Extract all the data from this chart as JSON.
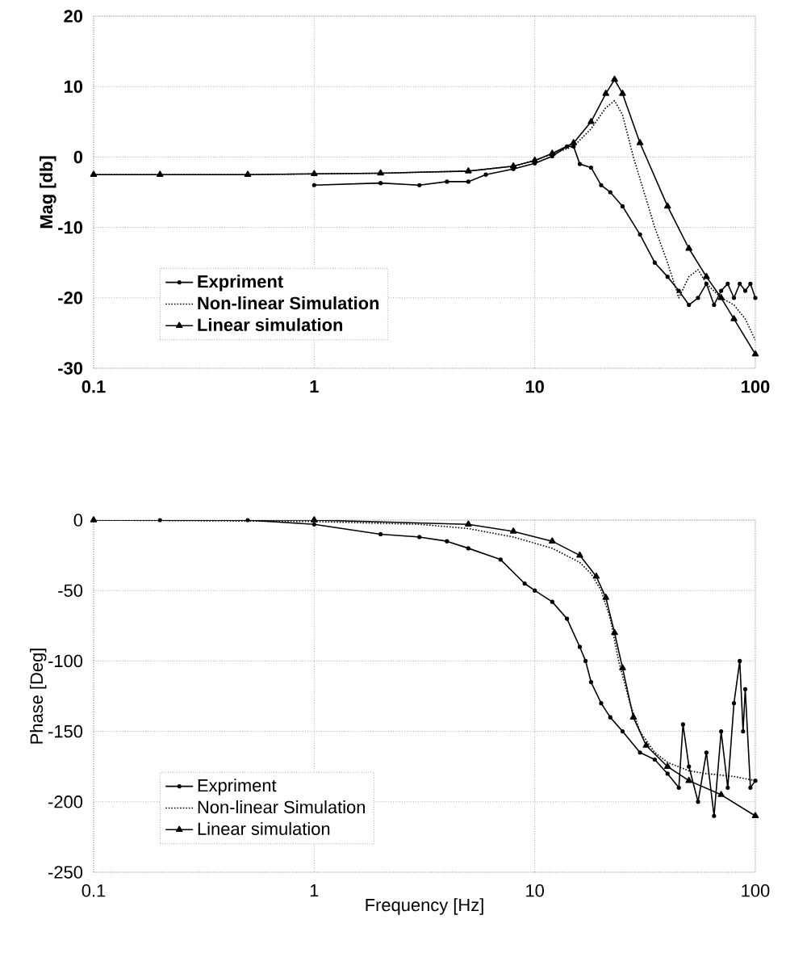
{
  "chart_data": [
    {
      "type": "line",
      "ylabel": "Mag [db]",
      "log": "x",
      "grid": true,
      "legend": "bottom left",
      "xlim": [
        0.1,
        100
      ],
      "xticks": [
        0.1,
        1,
        10,
        100
      ],
      "ylim": [
        -30,
        20
      ],
      "yticks": [
        -30,
        -20,
        -10,
        0,
        10,
        20
      ],
      "series": [
        {
          "name": "Expriment",
          "color": "#000000",
          "marker": "circle",
          "line_style": "solid",
          "x": [
            1,
            2,
            3,
            4,
            5,
            6,
            8,
            10,
            12,
            14,
            15,
            16,
            18,
            20,
            22,
            25,
            30,
            35,
            40,
            45,
            50,
            55,
            60,
            65,
            70,
            75,
            80,
            85,
            90,
            95,
            100
          ],
          "values": [
            -4,
            -3.7,
            -4,
            -3.5,
            -3.5,
            -2.5,
            -1.7,
            -0.9,
            0.1,
            1.5,
            1.5,
            -1,
            -1.5,
            -4,
            -5,
            -7,
            -11,
            -15,
            -17,
            -19,
            -21,
            -20,
            -18,
            -21,
            -19,
            -18,
            -20,
            -18,
            -19,
            -18,
            -20
          ]
        },
        {
          "name": "Non-linear Simulation",
          "color": "#000000",
          "marker": "none",
          "line_style": "dotted",
          "x": [
            0.1,
            0.2,
            0.5,
            1,
            2,
            5,
            8,
            10,
            15,
            18,
            21,
            23,
            25,
            28,
            35,
            40,
            45,
            50,
            55,
            60,
            70,
            80,
            90,
            100
          ],
          "values": [
            -2.5,
            -2.5,
            -2.5,
            -2.4,
            -2.3,
            -2,
            -1.3,
            -0.5,
            1.5,
            4,
            7,
            8,
            6,
            0,
            -10,
            -15,
            -20,
            -17,
            -16,
            -18,
            -20,
            -21,
            -23,
            -26
          ]
        },
        {
          "name": "Linear simulation",
          "color": "#000000",
          "marker": "triangle",
          "line_style": "solid",
          "x": [
            0.1,
            0.2,
            0.5,
            1,
            2,
            5,
            8,
            10,
            12,
            15,
            18,
            21,
            23,
            25,
            30,
            40,
            50,
            60,
            70,
            80,
            100
          ],
          "values": [
            -2.5,
            -2.5,
            -2.5,
            -2.4,
            -2.3,
            -2,
            -1.3,
            -0.5,
            0.5,
            2,
            5,
            9,
            11,
            9,
            2,
            -7,
            -13,
            -17,
            -20,
            -23,
            -28
          ]
        }
      ]
    },
    {
      "type": "line",
      "xlabel": "Frequency [Hz]",
      "ylabel": "Phase [Deg]",
      "log": "x",
      "grid": true,
      "legend": "bottom left",
      "xlim": [
        0.1,
        100
      ],
      "xticks": [
        0.1,
        1,
        10,
        100
      ],
      "ylim": [
        -250,
        0
      ],
      "yticks": [
        -250,
        -200,
        -150,
        -100,
        -50,
        0
      ],
      "series": [
        {
          "name": "Expriment",
          "color": "#000000",
          "marker": "circle",
          "line_style": "solid",
          "x": [
            0.2,
            0.5,
            1,
            2,
            3,
            4,
            5,
            7,
            9,
            10,
            12,
            14,
            16,
            17,
            18,
            20,
            22,
            25,
            30,
            35,
            40,
            45,
            47,
            50,
            55,
            60,
            65,
            70,
            75,
            80,
            85,
            88,
            90,
            95,
            100
          ],
          "values": [
            0,
            0,
            -3,
            -10,
            -12,
            -15,
            -20,
            -28,
            -45,
            -50,
            -58,
            -70,
            -90,
            -100,
            -115,
            -130,
            -140,
            -150,
            -165,
            -170,
            -180,
            -190,
            -145,
            -175,
            -200,
            -165,
            -210,
            -150,
            -190,
            -130,
            -100,
            -150,
            -120,
            -190,
            -185
          ]
        },
        {
          "name": "Non-linear Simulation",
          "color": "#000000",
          "marker": "none",
          "line_style": "dotted",
          "x": [
            0.1,
            1,
            3,
            5,
            8,
            12,
            16,
            18,
            20,
            22,
            24,
            27,
            30,
            35,
            40,
            50,
            60,
            80,
            100
          ],
          "values": [
            0,
            -1,
            -3,
            -6,
            -12,
            -20,
            -30,
            -38,
            -50,
            -70,
            -100,
            -130,
            -150,
            -165,
            -172,
            -178,
            -180,
            -182,
            -185
          ]
        },
        {
          "name": "Linear simulation",
          "color": "#000000",
          "marker": "triangle",
          "line_style": "solid",
          "x": [
            0.1,
            1,
            5,
            8,
            12,
            16,
            19,
            21,
            23,
            25,
            28,
            32,
            40,
            50,
            70,
            100
          ],
          "values": [
            0,
            0,
            -3,
            -8,
            -15,
            -25,
            -40,
            -55,
            -80,
            -105,
            -140,
            -160,
            -175,
            -185,
            -195,
            -210
          ]
        }
      ]
    }
  ]
}
